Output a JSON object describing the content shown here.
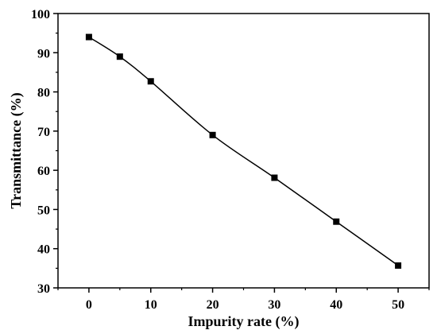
{
  "chart_data": {
    "type": "line",
    "title": "",
    "xlabel": "Impurity rate (%)",
    "ylabel": "Transmittance (%)",
    "xlim": [
      -5,
      55
    ],
    "ylim": [
      30,
      100
    ],
    "xticks": [
      0,
      10,
      20,
      30,
      40,
      50
    ],
    "yticks": [
      30,
      40,
      50,
      60,
      70,
      80,
      90,
      100
    ],
    "grid": false,
    "legend": "none",
    "series": [
      {
        "marker": "square",
        "color": "#000000",
        "x": [
          0,
          5,
          10,
          20,
          30,
          40,
          50
        ],
        "y": [
          94.0,
          89.0,
          82.7,
          69.0,
          58.1,
          46.9,
          35.7
        ]
      }
    ]
  }
}
